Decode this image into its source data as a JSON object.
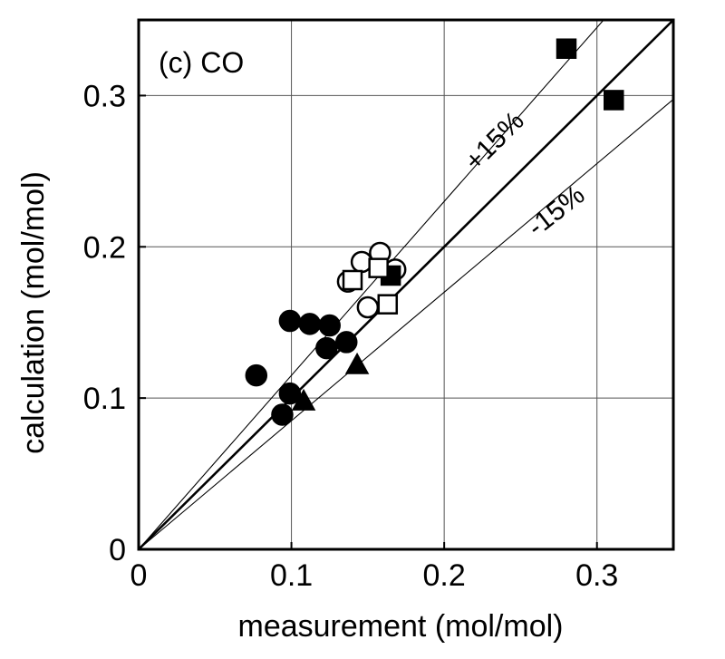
{
  "chart_data": {
    "type": "scatter",
    "panel_label": "(c) CO",
    "xlabel": "measurement (mol/mol)",
    "ylabel": "calculation (mol/mol)",
    "xlim": [
      0,
      0.35
    ],
    "ylim": [
      0,
      0.35
    ],
    "x_ticks": [
      {
        "value": 0,
        "label": "0"
      },
      {
        "value": 0.1,
        "label": "0.1"
      },
      {
        "value": 0.2,
        "label": "0.2"
      },
      {
        "value": 0.3,
        "label": "0.3"
      }
    ],
    "y_ticks": [
      {
        "value": 0,
        "label": "0"
      },
      {
        "value": 0.1,
        "label": "0.1"
      },
      {
        "value": 0.2,
        "label": "0.2"
      },
      {
        "value": 0.3,
        "label": "0.3"
      }
    ],
    "grid": true,
    "reference_lines": [
      {
        "slope": 1.0,
        "style": "thick"
      },
      {
        "slope": 1.15,
        "style": "thin",
        "label": "+15%"
      },
      {
        "slope": 0.85,
        "style": "thin",
        "label": "-15%"
      }
    ],
    "series": [
      {
        "marker": "filled-circle",
        "points": [
          {
            "x": 0.077,
            "y": 0.115
          },
          {
            "x": 0.099,
            "y": 0.151
          },
          {
            "x": 0.112,
            "y": 0.149
          },
          {
            "x": 0.125,
            "y": 0.148
          },
          {
            "x": 0.123,
            "y": 0.133
          },
          {
            "x": 0.136,
            "y": 0.137
          },
          {
            "x": 0.099,
            "y": 0.103
          },
          {
            "x": 0.094,
            "y": 0.089
          }
        ]
      },
      {
        "marker": "open-circle",
        "points": [
          {
            "x": 0.137,
            "y": 0.177
          },
          {
            "x": 0.146,
            "y": 0.19
          },
          {
            "x": 0.158,
            "y": 0.196
          },
          {
            "x": 0.168,
            "y": 0.185
          },
          {
            "x": 0.15,
            "y": 0.16
          }
        ]
      },
      {
        "marker": "filled-square",
        "points": [
          {
            "x": 0.28,
            "y": 0.331
          },
          {
            "x": 0.311,
            "y": 0.297
          },
          {
            "x": 0.165,
            "y": 0.181
          }
        ]
      },
      {
        "marker": "open-square",
        "points": [
          {
            "x": 0.14,
            "y": 0.178
          },
          {
            "x": 0.157,
            "y": 0.186
          },
          {
            "x": 0.163,
            "y": 0.162
          }
        ]
      },
      {
        "marker": "filled-triangle",
        "points": [
          {
            "x": 0.108,
            "y": 0.098
          },
          {
            "x": 0.143,
            "y": 0.122
          }
        ]
      }
    ]
  }
}
